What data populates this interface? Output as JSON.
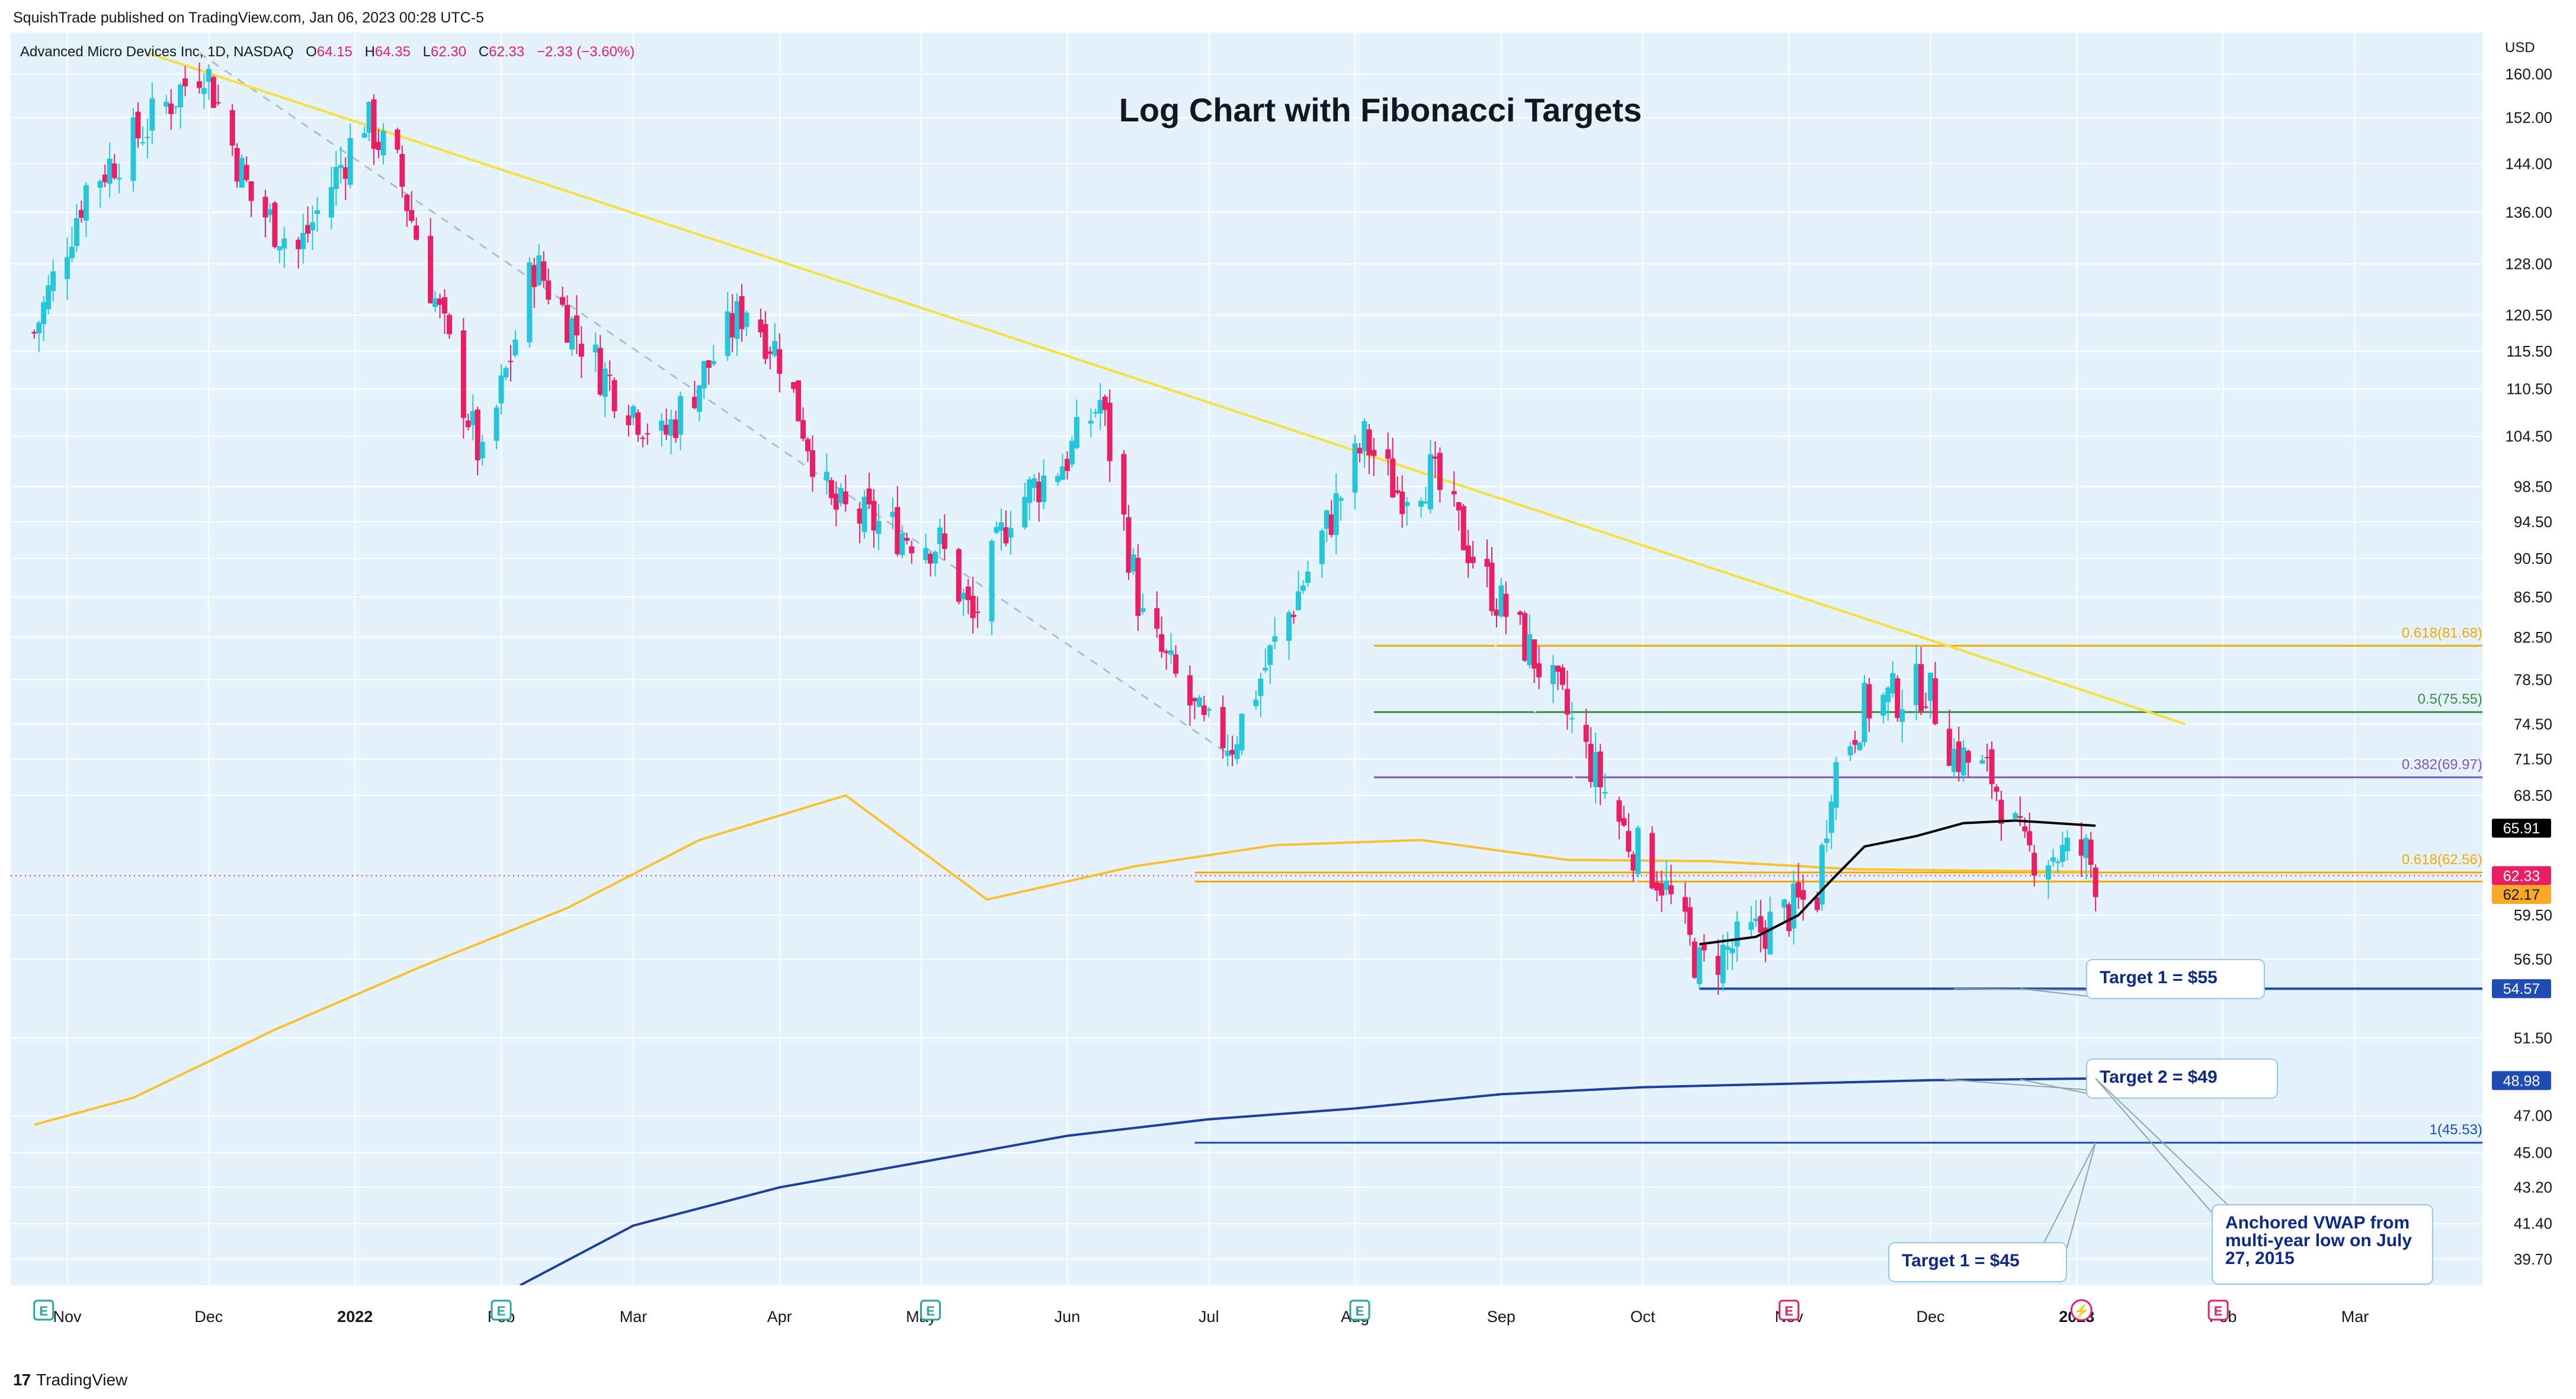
{
  "header": {
    "published": "SquishTrade published on TradingView.com, Jan 06, 2023 00:28 UTC-5",
    "symbol": "Advanced Micro Devices Inc, 1D, NASDAQ",
    "o_label": "O",
    "o_val": "64.15",
    "h_label": "H",
    "h_val": "64.35",
    "l_label": "L",
    "l_val": "62.30",
    "c_label": "C",
    "c_val": "62.33",
    "change": "−2.33 (−3.60%)"
  },
  "footer": {
    "brand": "TradingView",
    "logo": "17"
  },
  "chart_data": {
    "type": "candlestick",
    "title": "Log Chart with Fibonacci Targets",
    "currency": "USD",
    "scale": "log",
    "ylim": [
      38.5,
      168
    ],
    "y_ticks": [
      "160.00",
      "152.00",
      "144.00",
      "136.00",
      "128.00",
      "120.50",
      "115.50",
      "110.50",
      "104.50",
      "98.50",
      "94.50",
      "90.50",
      "86.50",
      "82.50",
      "78.50",
      "74.50",
      "71.50",
      "68.50",
      "59.50",
      "56.50",
      "51.50",
      "47.00",
      "45.00",
      "43.20",
      "41.40",
      "39.70"
    ],
    "x_ticks": [
      {
        "label": "Nov",
        "bold": false
      },
      {
        "label": "Dec",
        "bold": false
      },
      {
        "label": "2022",
        "bold": true
      },
      {
        "label": "Feb",
        "bold": false
      },
      {
        "label": "Mar",
        "bold": false
      },
      {
        "label": "Apr",
        "bold": false
      },
      {
        "label": "May",
        "bold": false
      },
      {
        "label": "Jun",
        "bold": false
      },
      {
        "label": "Jul",
        "bold": false
      },
      {
        "label": "Aug",
        "bold": false
      },
      {
        "label": "Sep",
        "bold": false
      },
      {
        "label": "Oct",
        "bold": false
      },
      {
        "label": "Nov",
        "bold": false
      },
      {
        "label": "Dec",
        "bold": false
      },
      {
        "label": "2023",
        "bold": true
      },
      {
        "label": "Feb",
        "bold": false
      },
      {
        "label": "Mar",
        "bold": false
      }
    ],
    "price_path": [
      [
        "2021-10-25",
        118
      ],
      [
        "2021-11-05",
        140
      ],
      [
        "2021-11-15",
        148
      ],
      [
        "2021-11-30",
        162
      ],
      [
        "2021-12-10",
        138
      ],
      [
        "2021-12-20",
        130
      ],
      [
        "2022-01-03",
        152
      ],
      [
        "2022-01-10",
        143
      ],
      [
        "2022-01-20",
        118
      ],
      [
        "2022-01-28",
        101
      ],
      [
        "2022-02-08",
        128
      ],
      [
        "2022-02-22",
        113
      ],
      [
        "2022-03-07",
        104
      ],
      [
        "2022-03-25",
        122
      ],
      [
        "2022-04-01",
        115
      ],
      [
        "2022-04-12",
        96
      ],
      [
        "2022-05-05",
        92
      ],
      [
        "2022-05-12",
        84
      ],
      [
        "2022-05-20",
        96
      ],
      [
        "2022-06-01",
        102
      ],
      [
        "2022-06-08",
        109
      ],
      [
        "2022-06-17",
        84
      ],
      [
        "2022-06-30",
        74
      ],
      [
        "2022-07-06",
        73
      ],
      [
        "2022-07-20",
        87
      ],
      [
        "2022-08-03",
        104
      ],
      [
        "2022-08-10",
        98
      ],
      [
        "2022-08-17",
        100
      ],
      [
        "2022-08-29",
        88
      ],
      [
        "2022-09-13",
        77
      ],
      [
        "2022-09-28",
        65
      ],
      [
        "2022-10-05",
        62
      ],
      [
        "2022-10-13",
        56
      ],
      [
        "2022-10-24",
        58
      ],
      [
        "2022-11-02",
        60
      ],
      [
        "2022-11-07",
        61
      ],
      [
        "2022-11-10",
        70
      ],
      [
        "2022-11-17",
        76
      ],
      [
        "2022-11-30",
        78
      ],
      [
        "2022-12-06",
        72
      ],
      [
        "2022-12-14",
        70
      ],
      [
        "2022-12-21",
        64
      ],
      [
        "2023-01-03",
        64
      ],
      [
        "2023-01-05",
        62.33
      ]
    ],
    "levels": [
      {
        "name": "fib-0.618-top",
        "label": "0.618(81.68)",
        "value": 81.68,
        "color": "#F2A900",
        "from": "2022-08-05",
        "to": "right"
      },
      {
        "name": "fib-0.5",
        "label": "0.5(75.55)",
        "value": 75.55,
        "color": "#388E3C",
        "from": "2022-08-05",
        "to": "right"
      },
      {
        "name": "fib-0.382",
        "label": "0.382(69.97)",
        "value": 69.97,
        "color": "#7E57C2",
        "from": "2022-08-05",
        "to": "right"
      },
      {
        "name": "fib-0.618-bottom",
        "label": "0.618(62.56)",
        "value": 62.56,
        "color": "#F2A900",
        "from": "2022-06-28",
        "to": "right"
      },
      {
        "name": "fib-1",
        "label": "1(45.53)",
        "value": 45.53,
        "color": "#1E4BB4",
        "from": "2022-06-28",
        "to": "right"
      },
      {
        "name": "target-55",
        "label": "",
        "value": 54.57,
        "color": "#1E4BB4",
        "from": "2022-10-13",
        "to": "right"
      }
    ],
    "price_tags": [
      {
        "name": "tag-65-91",
        "value": 65.91,
        "text": "65.91",
        "bg": "#000000"
      },
      {
        "name": "tag-62-33",
        "value": 62.33,
        "text": "62.33",
        "bg": "#E91E63"
      },
      {
        "name": "tag-62-17",
        "value": 62.17,
        "text": "62.17",
        "bg": "#F9A825"
      },
      {
        "name": "tag-54-57",
        "value": 54.57,
        "text": "54.57",
        "bg": "#1E4BB4"
      },
      {
        "name": "tag-48-98",
        "value": 48.98,
        "text": "48.98",
        "bg": "#1E4BB4"
      }
    ],
    "trendline": {
      "from": [
        "2021-11-18",
        164
      ],
      "to": [
        "2023-01-24",
        74.5
      ],
      "color": "#F5E13A"
    },
    "ma_orange": [
      [
        "2021-10-25",
        46.5
      ],
      [
        "2021-11-15",
        48
      ],
      [
        "2021-12-15",
        52
      ],
      [
        "2022-01-15",
        56
      ],
      [
        "2022-02-15",
        60
      ],
      [
        "2022-03-15",
        65
      ],
      [
        "2022-04-15",
        68.5
      ],
      [
        "2022-05-15",
        60.6
      ],
      [
        "2022-06-15",
        63
      ],
      [
        "2022-07-15",
        64.6
      ],
      [
        "2022-08-15",
        65
      ],
      [
        "2022-09-15",
        63.5
      ],
      [
        "2022-10-15",
        63.4
      ],
      [
        "2022-11-15",
        62.8
      ],
      [
        "2023-01-05",
        62.6
      ]
    ],
    "anchored_vwap_long": [
      [
        "2022-02-05",
        38.5
      ],
      [
        "2022-03-01",
        41.3
      ],
      [
        "2022-04-01",
        43.2
      ],
      [
        "2022-05-01",
        44.5
      ],
      [
        "2022-06-01",
        45.9
      ],
      [
        "2022-07-01",
        46.8
      ],
      [
        "2022-08-01",
        47.4
      ],
      [
        "2022-09-01",
        48.2
      ],
      [
        "2022-10-01",
        48.6
      ],
      [
        "2022-11-01",
        48.8
      ],
      [
        "2022-12-01",
        49.0
      ],
      [
        "2023-01-05",
        49.1
      ]
    ],
    "vwap_short": [
      [
        "2022-10-13",
        57.5
      ],
      [
        "2022-10-25",
        58
      ],
      [
        "2022-11-03",
        59.5
      ],
      [
        "2022-11-10",
        62
      ],
      [
        "2022-11-17",
        64.5
      ],
      [
        "2022-11-28",
        65.3
      ],
      [
        "2022-12-08",
        66.3
      ],
      [
        "2022-12-19",
        66.5
      ],
      [
        "2023-01-05",
        66.1
      ]
    ],
    "annotations": [
      {
        "name": "callout-target-1-55",
        "text": "Target 1 = $55"
      },
      {
        "name": "callout-target-2-49",
        "text": "Target 2 = $49"
      },
      {
        "name": "callout-target-1-45",
        "text": "Target 1 = $45"
      },
      {
        "name": "callout-anchored-vwap",
        "text": "Anchored VWAP from multi-year low on July 27, 2015"
      }
    ],
    "events": [
      {
        "type": "earnings",
        "label": "E",
        "date": "2021-10-27"
      },
      {
        "type": "earnings",
        "label": "E",
        "date": "2022-02-01"
      },
      {
        "type": "earnings",
        "label": "E",
        "date": "2022-05-03"
      },
      {
        "type": "earnings",
        "label": "E",
        "date": "2022-08-02"
      },
      {
        "type": "earnings",
        "label": "E",
        "date": "2022-11-01"
      },
      {
        "type": "split",
        "label": "⚡",
        "date": "2023-01-02"
      },
      {
        "type": "earnings",
        "label": "E",
        "date": "2023-01-31"
      }
    ]
  },
  "colors": {
    "up": "#26C6DA",
    "down": "#E91E63",
    "background": "#E3F2FD",
    "grid": "#FFFFFF",
    "text": "#131722"
  }
}
